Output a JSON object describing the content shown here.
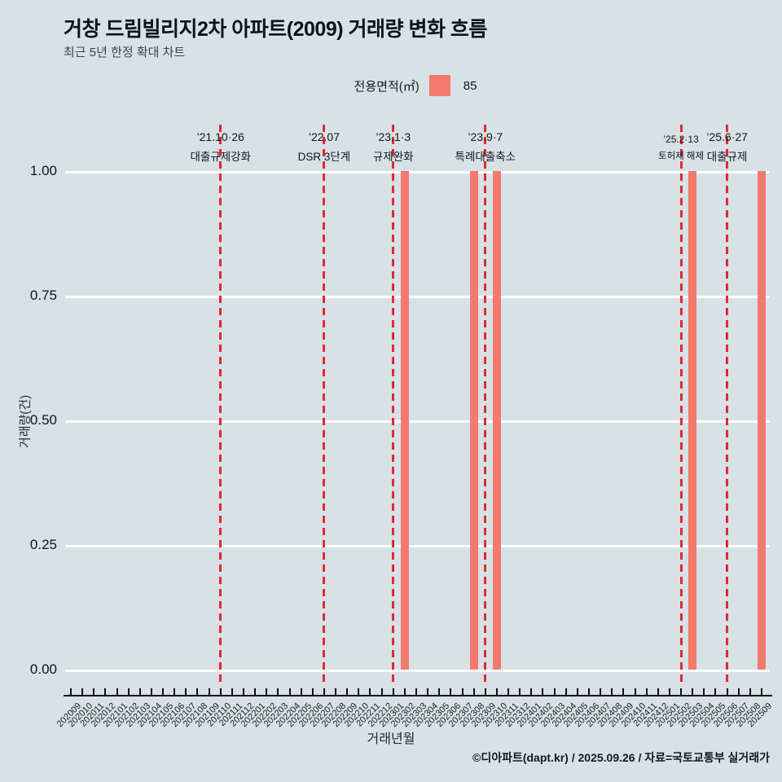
{
  "title": "거창 드림빌리지2차 아파트(2009) 거래량 변화 흐름",
  "subtitle": "최근 5년 한정 확대 차트",
  "legend": {
    "label": "전용면적(㎡)",
    "swatch_color": "#f4796e",
    "value": "85"
  },
  "footer": "©디아파트(dapt.kr) / 2025.09.26 / 자료=국토교통부 실거래가",
  "chart_data": {
    "type": "bar",
    "title": "거창 드림빌리지2차 아파트(2009) 거래량 변화 흐름",
    "xlabel": "거래년월",
    "ylabel": "거래량(건)",
    "ylim": [
      0,
      1
    ],
    "grid": true,
    "legend_position": "top center",
    "bar_color": "#f4796e",
    "event_line_color": "#e12b2b",
    "yticks": [
      {
        "value": 0.0,
        "label": "0.00"
      },
      {
        "value": 0.25,
        "label": "0.25"
      },
      {
        "value": 0.5,
        "label": "0.50"
      },
      {
        "value": 0.75,
        "label": "0.75"
      },
      {
        "value": 1.0,
        "label": "1.00"
      }
    ],
    "categories": [
      "202009",
      "202010",
      "202011",
      "202012",
      "202101",
      "202102",
      "202103",
      "202104",
      "202105",
      "202106",
      "202107",
      "202108",
      "202109",
      "202110",
      "202111",
      "202112",
      "202201",
      "202202",
      "202203",
      "202204",
      "202205",
      "202206",
      "202207",
      "202208",
      "202209",
      "202210",
      "202211",
      "202212",
      "202301",
      "202302",
      "202303",
      "202304",
      "202305",
      "202306",
      "202307",
      "202308",
      "202309",
      "202310",
      "202311",
      "202312",
      "202401",
      "202402",
      "202403",
      "202404",
      "202405",
      "202406",
      "202407",
      "202408",
      "202409",
      "202410",
      "202411",
      "202412",
      "202501",
      "202502",
      "202503",
      "202504",
      "202505",
      "202506",
      "202507",
      "202508",
      "202509"
    ],
    "series": [
      {
        "name": "85",
        "bars": [
          {
            "month": "202302",
            "value": 1
          },
          {
            "month": "202308",
            "value": 1
          },
          {
            "month": "202310",
            "value": 1
          },
          {
            "month": "202503",
            "value": 1
          },
          {
            "month": "202509",
            "value": 1
          }
        ]
      }
    ],
    "annotations": [
      {
        "month": "202110",
        "date": "’21.10·26",
        "label": "대출규제강화",
        "small": false
      },
      {
        "month": "202207",
        "date": "’22.07",
        "label": "DSR 3단계",
        "small": false
      },
      {
        "month": "202301",
        "date": "’23.1·3",
        "label": "규제완화",
        "small": false
      },
      {
        "month": "202309",
        "date": "’23.9·7",
        "label": "특례대출축소",
        "small": false
      },
      {
        "month": "202502",
        "date": "’25.2·13",
        "label": "토허제 해제",
        "small": true
      },
      {
        "month": "202506",
        "date": "’25.6·27",
        "label": "대출규제",
        "small": false
      }
    ]
  }
}
